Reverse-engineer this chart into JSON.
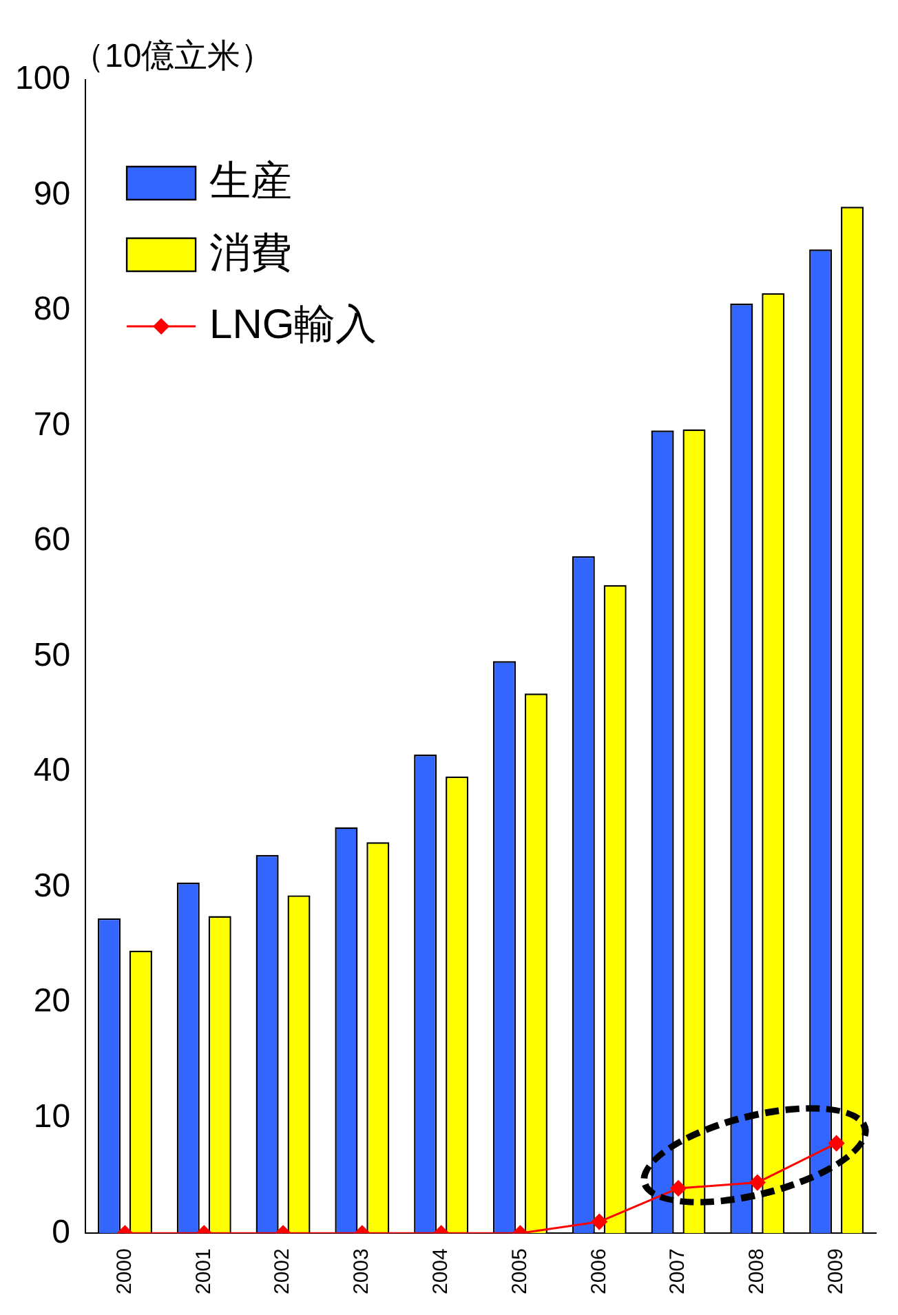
{
  "chart_data": {
    "type": "bar",
    "ylabel": "（10億立米）",
    "categories": [
      "2000",
      "2001",
      "2002",
      "2003",
      "2004",
      "2005",
      "2006",
      "2007",
      "2008",
      "2009"
    ],
    "series": [
      {
        "name": "生産",
        "color": "#3366ff",
        "values": [
          27.3,
          30.4,
          32.8,
          35.2,
          41.5,
          49.6,
          58.7,
          69.6,
          80.6,
          85.3
        ]
      },
      {
        "name": "消費",
        "color": "#ffff00",
        "values": [
          24.5,
          27.5,
          29.3,
          33.9,
          39.6,
          46.8,
          56.2,
          69.7,
          81.5,
          89.0
        ]
      },
      {
        "name": "LNG輸入",
        "type": "line",
        "color": "#ff0000",
        "marker": "diamond",
        "values": [
          0,
          0,
          0,
          0,
          0,
          0,
          1.0,
          3.9,
          4.4,
          7.8
        ]
      }
    ],
    "ylim": [
      0,
      100
    ],
    "yticks": [
      0,
      10,
      20,
      30,
      40,
      50,
      60,
      70,
      80,
      90,
      100
    ],
    "grid": false,
    "legend": "top left"
  }
}
